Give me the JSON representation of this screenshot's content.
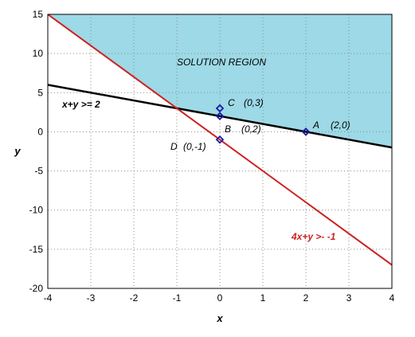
{
  "chart_data": {
    "type": "line",
    "xlabel": "x",
    "ylabel": "y",
    "xlim": [
      -4,
      4
    ],
    "ylim": [
      -20,
      15
    ],
    "xticks": [
      -4,
      -3,
      -2,
      -1,
      0,
      1,
      2,
      3,
      4
    ],
    "yticks": [
      -20,
      -15,
      -10,
      -5,
      0,
      5,
      10,
      15
    ],
    "grid": true,
    "region": {
      "label": "SOLUTION REGION",
      "color": "#9dd9e6"
    },
    "series": [
      {
        "name": "x+y >= 2",
        "color": "#000000",
        "x": [
          -4,
          4
        ],
        "y": [
          6,
          -2
        ]
      },
      {
        "name": "4x+y >- -1",
        "color": "#cc2222",
        "x": [
          -4,
          4
        ],
        "y": [
          15,
          -17
        ]
      }
    ],
    "points": [
      {
        "name": "C",
        "coord": "(0,3)",
        "x": 0,
        "y": 3
      },
      {
        "name": "B",
        "coord": "(0,2)",
        "x": 0,
        "y": 2
      },
      {
        "name": "A",
        "coord": "(2,0)",
        "x": 2,
        "y": 0
      },
      {
        "name": "D",
        "coord": "(0,-1)",
        "x": 0,
        "y": -1
      }
    ],
    "point_color": "#1a1aa6"
  }
}
